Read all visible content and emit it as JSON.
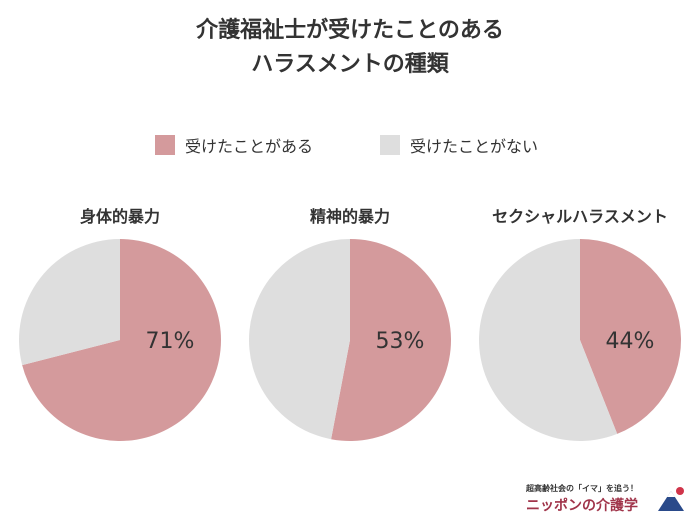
{
  "title_line1": "介護福祉士が受けたことのある",
  "title_line2": "ハラスメントの種類",
  "chart_data": [
    {
      "type": "pie",
      "title": "身体的暴力",
      "slices": [
        {
          "label": "受けたことがある",
          "value": 71,
          "display": "71%",
          "color": "#d49a9c"
        },
        {
          "label": "受けたことがない",
          "value": 29,
          "color": "#dedede"
        }
      ]
    },
    {
      "type": "pie",
      "title": "精神的暴力",
      "slices": [
        {
          "label": "受けたことがある",
          "value": 53,
          "display": "53%",
          "color": "#d49a9c"
        },
        {
          "label": "受けたことがない",
          "value": 47,
          "color": "#dedede"
        }
      ]
    },
    {
      "type": "pie",
      "title": "セクシャルハラスメント",
      "slices": [
        {
          "label": "受けたことがある",
          "value": 44,
          "display": "44%",
          "color": "#d49a9c"
        },
        {
          "label": "受けたことがない",
          "value": 56,
          "color": "#dedede"
        }
      ]
    }
  ],
  "legend": [
    {
      "label": "受けたことがある",
      "color": "#d49a9c"
    },
    {
      "label": "受けたことがない",
      "color": "#dedede"
    }
  ],
  "footer": {
    "tagline": "超高齢社会の「イマ」を追う！",
    "brand": "ニッポンの介護学"
  }
}
